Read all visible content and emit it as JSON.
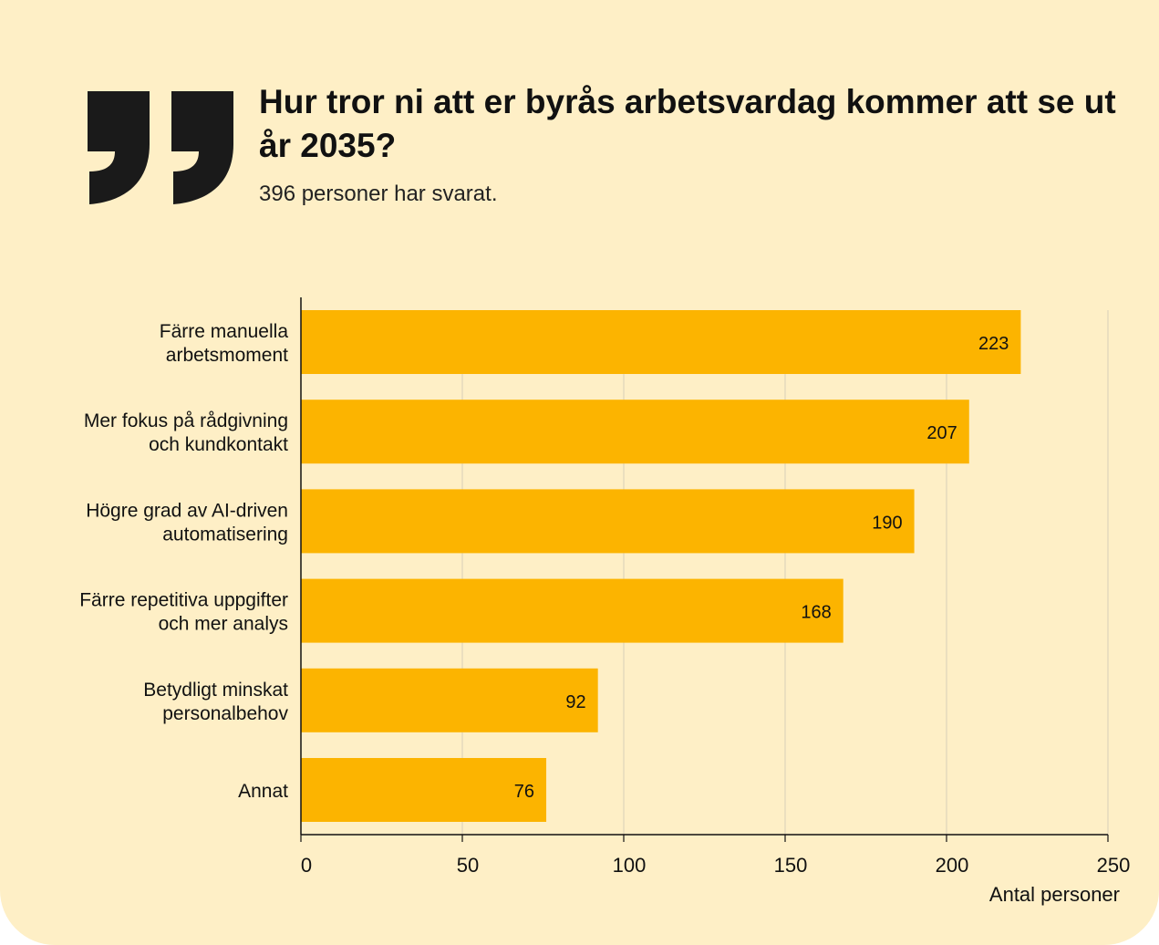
{
  "header": {
    "title": "Hur tror ni att er byrås arbetsvardag kommer att se ut år 2035?",
    "subtitle": "396 personer har svarat."
  },
  "colors": {
    "background": "#FEEFC6",
    "bar": "#FCB400",
    "quote": "#1A1A1A",
    "text": "#111111",
    "grid": "#D8CFB8"
  },
  "icons": {
    "quote": "quote-mark-icon"
  },
  "chart_data": {
    "type": "bar",
    "orientation": "horizontal",
    "categories": [
      [
        "Färre manuella",
        "arbetsmoment"
      ],
      [
        "Mer fokus på rådgivning",
        "och kundkontakt"
      ],
      [
        "Högre grad av AI-driven",
        "automatisering"
      ],
      [
        "Färre repetitiva uppgifter",
        "och mer analys"
      ],
      [
        "Betydligt minskat",
        "personalbehov"
      ],
      [
        "Annat"
      ]
    ],
    "values": [
      223,
      207,
      190,
      168,
      92,
      76
    ],
    "xlabel": "Antal personer",
    "ylabel": "",
    "xlim": [
      0,
      250
    ],
    "xticks": [
      0,
      50,
      100,
      150,
      200,
      250
    ],
    "grid": "vertical",
    "data_labels": true
  }
}
